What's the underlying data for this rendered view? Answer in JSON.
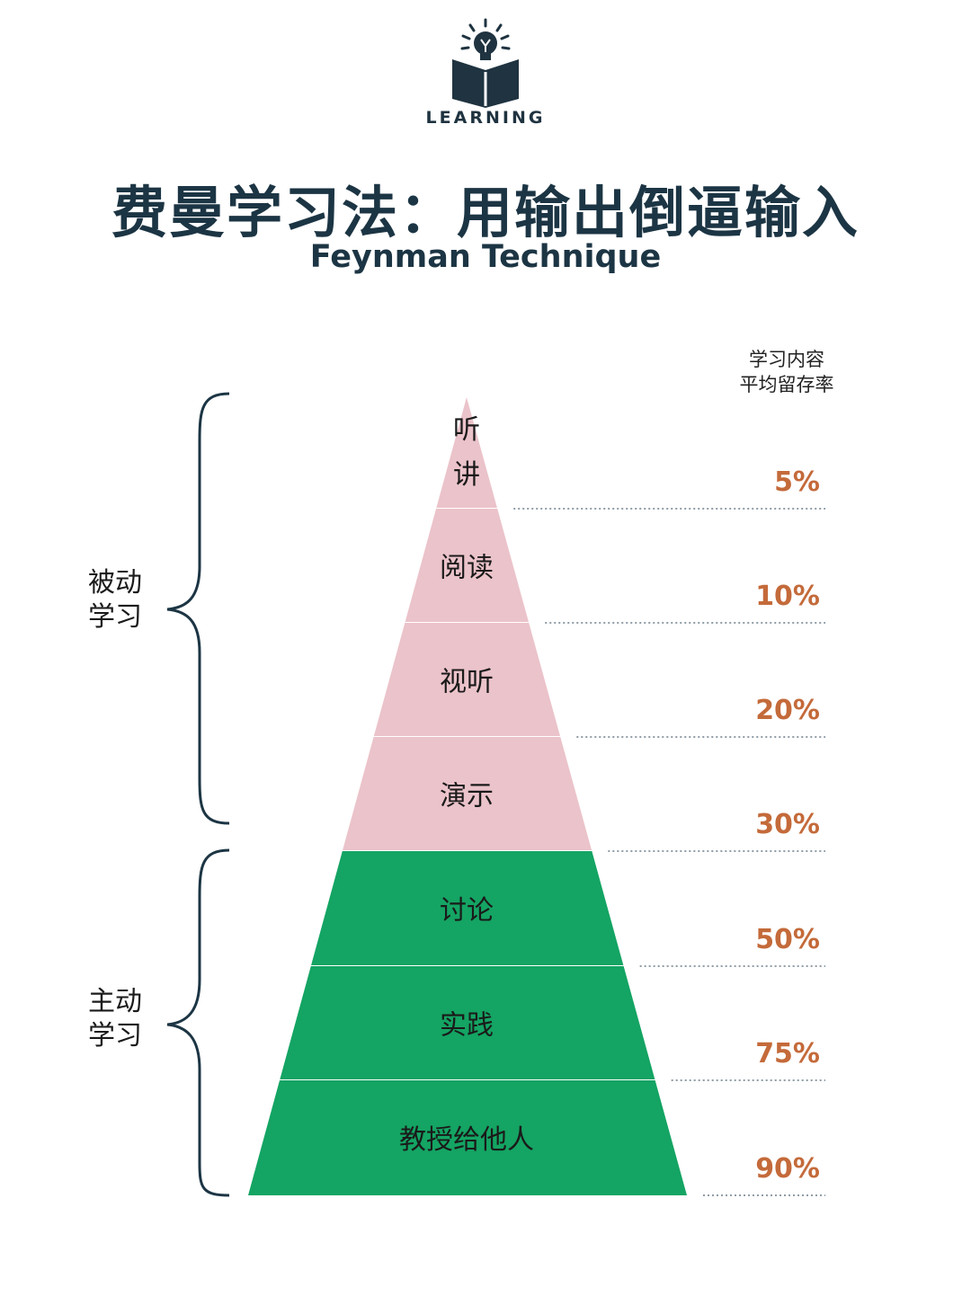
{
  "logo": {
    "text": "LEARNING",
    "icon": "lightbulb-book-icon"
  },
  "title": "费曼学习法：用输出倒逼输入",
  "subtitle": "Feynman Technique",
  "column_header": {
    "line1": "学习内容",
    "line2": "平均留存率"
  },
  "groups": {
    "passive": {
      "line1": "被动",
      "line2": "学习"
    },
    "active": {
      "line1": "主动",
      "line2": "学习"
    }
  },
  "colors": {
    "passive": "#ebc3ca",
    "active": "#14a463",
    "percent": "#c46a3a",
    "dark": "#1c3544"
  },
  "levels": [
    {
      "label": "听讲",
      "retention": "5%",
      "group": "passive"
    },
    {
      "label": "阅读",
      "retention": "10%",
      "group": "passive"
    },
    {
      "label": "视听",
      "retention": "20%",
      "group": "passive"
    },
    {
      "label": "演示",
      "retention": "30%",
      "group": "passive"
    },
    {
      "label": "讨论",
      "retention": "50%",
      "group": "active"
    },
    {
      "label": "实践",
      "retention": "75%",
      "group": "active"
    },
    {
      "label": "教授给他人",
      "retention": "90%",
      "group": "active"
    }
  ]
}
